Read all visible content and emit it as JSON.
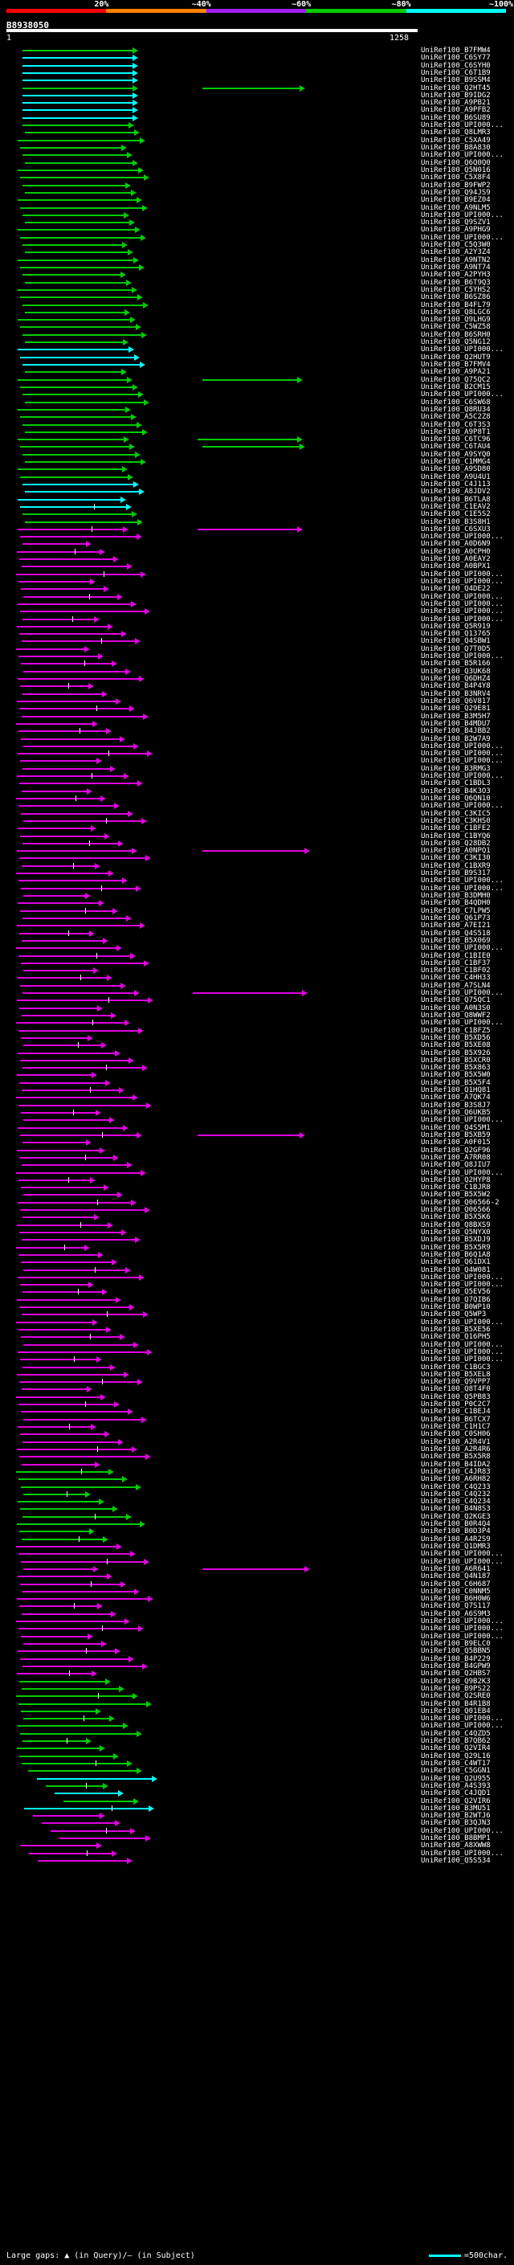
{
  "scale": {
    "ticks": [
      "20%",
      "~40%",
      "~60%",
      "~80%",
      "~100%"
    ],
    "colors": [
      "#ff0000",
      "#ff8000",
      "#a020f0",
      "#00cc00",
      "#00ffff"
    ]
  },
  "query": {
    "id": "B8938050",
    "start": "1",
    "end": "1258"
  },
  "colors": {
    "cyan": "#00ffff",
    "green": "#00cc00",
    "magenta": "#e000e0"
  },
  "hits": [
    "UniRef100_B7FMW4",
    "UniRef100_C6SY77",
    "UniRef100_C6SYH0",
    "UniRef100_C6T1B9",
    "UniRef100_B9SSM4",
    "UniRef100_Q2HT45",
    "UniRef100_B9IDG2",
    "UniRef100_A9PB21",
    "UniRef100_A9PFB2",
    "UniRef100_B6SU89",
    "UniRef100_UPI000...",
    "UniRef100_Q8LMR3",
    "UniRef100_C5XA49",
    "UniRef100_B8A830",
    "UniRef100_UPI000...",
    "UniRef100_Q6Q0Q0",
    "UniRef100_Q5N016",
    "UniRef100_C5X8F4",
    "UniRef100_B9FWP2",
    "UniRef100_Q94JS9",
    "UniRef100_B9EZ04",
    "UniRef100_A9NLM5",
    "UniRef100_UPI000...",
    "UniRef100_Q9SZV1",
    "UniRef100_A9PHG9",
    "UniRef100_UPI000...",
    "UniRef100_C5Q3W0",
    "UniRef100_A2Y3Z4",
    "UniRef100_A9NTN2",
    "UniRef100_A9NT74",
    "UniRef100_A2PYH3",
    "UniRef100_B6T9Q3",
    "UniRef100_C5YHS2",
    "UniRef100_B6SZ86",
    "UniRef100_B4FL79",
    "UniRef100_Q8LGC6",
    "UniRef100_Q9LHG9",
    "UniRef100_C5WZ58",
    "UniRef100_B6SRH0",
    "UniRef100_Q5NG12",
    "UniRef100_UPI000...",
    "UniRef100_Q2HUT9",
    "UniRef100_B7FMV4",
    "UniRef100_A9PA21",
    "UniRef100_Q75QC2",
    "UniRef100_B2CM15",
    "UniRef100_UPI000...",
    "UniRef100_C6SW68",
    "UniRef100_Q8RU34",
    "UniRef100_A5C2Z8",
    "UniRef100_C6T3S3",
    "UniRef100_A9P8T1",
    "UniRef100_C6TC96",
    "UniRef100_C6TAU4",
    "UniRef100_A9SYQ0",
    "UniRef100_C1MMG4",
    "UniRef100_A9SD80",
    "UniRef100_A9U4U1",
    "UniRef100_C4J113",
    "UniRef100_A8JDV2",
    "UniRef100_B6TLA8",
    "UniRef100_C1EAV2",
    "UniRef100_C1E5S2",
    "UniRef100_B3S8H1",
    "UniRef100_C6SXU3",
    "UniRef100_UPI000...",
    "UniRef100_A0D6N9",
    "UniRef100_A0CPH0",
    "UniRef100_A0EAY2",
    "UniRef100_A0BPX1",
    "UniRef100_UPI000...",
    "UniRef100_UPI000...",
    "UniRef100_Q4DE22",
    "UniRef100_UPI000...",
    "UniRef100_UPI000...",
    "UniRef100_UPI000...",
    "UniRef100_UPI000...",
    "UniRef100_Q5R919",
    "UniRef100_Q13765",
    "UniRef100_Q4SBW1",
    "UniRef100_Q7T0D5",
    "UniRef100_UPI000...",
    "UniRef100_B5R166",
    "UniRef100_Q3UK68",
    "UniRef100_Q6DHZ4",
    "UniRef100_B4P4Y8",
    "UniRef100_B3NRV4",
    "UniRef100_Q6V817",
    "UniRef100_Q29E81",
    "UniRef100_B3M5H7",
    "UniRef100_B4MDU7",
    "UniRef100_B4JBB2",
    "UniRef100_B2W7A9",
    "UniRef100_UPI000...",
    "UniRef100_UPI000...",
    "UniRef100_UPI000...",
    "UniRef100_B3RMG3",
    "UniRef100_UPI000...",
    "UniRef100_C1BDL3",
    "UniRef100_B4K3O3",
    "UniRef100_Q6QN10",
    "UniRef100_UPI000...",
    "UniRef100_C3KIC5",
    "UniRef100_C3KHS0",
    "UniRef100_C1BFE2",
    "UniRef100_C1BYQ6",
    "UniRef100_Q28DB2",
    "UniRef100_A0NPQ1",
    "UniRef100_C3KI30",
    "UniRef100_C1BXR9",
    "UniRef100_B9S317",
    "UniRef100_UPI000...",
    "UniRef100_UPI000...",
    "UniRef100_B3DMH0",
    "UniRef100_B4QDH0",
    "UniRef100_C7LPW5",
    "UniRef100_Q61P73",
    "UniRef100_A7EI21",
    "UniRef100_Q4S518",
    "UniRef100_B5X069",
    "UniRef100_UPI000...",
    "UniRef100_C1BIE0",
    "UniRef100_C1BF37",
    "UniRef100_C1BF02",
    "UniRef100_C4HH33",
    "UniRef100_A7SLN4",
    "UniRef100_UPI000...",
    "UniRef100_Q75QC1",
    "UniRef100_A0N3S0",
    "UniRef100_Q8WWF2",
    "UniRef100_UPI000...",
    "UniRef100_C1BFZ5",
    "UniRef100_B5XD56",
    "UniRef100_B5XE08",
    "UniRef100_B5X926",
    "UniRef100_B5XCR0",
    "UniRef100_B5X863",
    "UniRef100_B5X5W0",
    "UniRef100_B5X5F4",
    "UniRef100_Q1HQ81",
    "UniRef100_A7QK74",
    "UniRef100_B3S8J7",
    "UniRef100_Q6UKB5",
    "UniRef100_UPI000...",
    "UniRef100_Q4S5M1",
    "UniRef100_B5XB59",
    "UniRef100_A0F015",
    "UniRef100_Q2GF96",
    "UniRef100_A7RR08",
    "UniRef100_Q8JIU7",
    "UniRef100_UPI000...",
    "UniRef100_Q2HYP8",
    "UniRef100_C1BJR8",
    "UniRef100_B5X5W2",
    "UniRef100_Q06566-2",
    "UniRef100_Q06566",
    "UniRef100_B5X5K6",
    "UniRef100_Q8BXS9",
    "UniRef100_Q5NYX0",
    "UniRef100_B5XDJ9",
    "UniRef100_B5X5R9",
    "UniRef100_B6Q1A8",
    "UniRef100_Q61DX1",
    "UniRef100_Q4W081",
    "UniRef100_UPI000...",
    "UniRef100_UPI000...",
    "UniRef100_Q5EV56",
    "UniRef100_Q7QIB6",
    "UniRef100_B0WP10",
    "UniRef100_Q5WP3",
    "UniRef100_UPI000...",
    "UniRef100_B5XE56",
    "UniRef100_Q16PH5",
    "UniRef100_UPI000...",
    "UniRef100_UPI000...",
    "UniRef100_UPI000...",
    "UniRef100_C1BGC3",
    "UniRef100_B5XEL8",
    "UniRef100_Q9VPP7",
    "UniRef100_Q8T4F0",
    "UniRef100_Q5PB83",
    "UniRef100_P0C2C7",
    "UniRef100_C1BEJ4",
    "UniRef100_B6TCX7",
    "UniRef100_C1H1C7",
    "UniRef100_C0SH06",
    "UniRef100_A2R4V1",
    "UniRef100_A2R4R6",
    "UniRef100_B5X5R8",
    "UniRef100_B4IDA2",
    "UniRef100_C4JR83",
    "UniRef100_A6RH82",
    "UniRef100_C4Q233",
    "UniRef100_C4Q232",
    "UniRef100_C4Q234",
    "UniRef100_B4N8S3",
    "UniRef100_Q2KGE3",
    "UniRef100_B0R4Q4",
    "UniRef100_B0D3P4",
    "UniRef100_A4R2S9",
    "UniRef100_Q1DMR3",
    "UniRef100_UPI000...",
    "UniRef100_UPI000...",
    "UniRef100_A6R641",
    "UniRef100_Q4N187",
    "UniRef100_C6H687",
    "UniRef100_C0NNM5",
    "UniRef100_B6H0W6",
    "UniRef100_Q7S117",
    "UniRef100_A6S9M3",
    "UniRef100_UPI000...",
    "UniRef100_UPI000...",
    "UniRef100_UPI000...",
    "UniRef100_B9ELC0",
    "UniRef100_Q5BBN5",
    "UniRef100_B4P229",
    "UniRef100_B4GPW9",
    "UniRef100_Q2HBS7",
    "UniRef100_Q9B2K3",
    "UniRef100_B9PS22",
    "UniRef100_Q2SRE0",
    "UniRef100_B4R1B8",
    "UniRef100_Q01EB4",
    "UniRef100_UPI000...",
    "UniRef100_UPI000...",
    "UniRef100_C4QZD5",
    "UniRef100_B7QB62",
    "UniRef100_Q2VIR4",
    "UniRef100_Q29L16",
    "UniRef100_C4WT17",
    "UniRef100_C5GGN1",
    "UniRef100_Q2U955",
    "UniRef100_A4S393",
    "UniRef100_C4JQD1",
    "UniRef100_Q2VIR6",
    "UniRef100_B3MU51",
    "UniRef100_B2WTJ6",
    "UniRef100_B3QJN3",
    "UniRef100_UPI000...",
    "UniRef100_B8BMP1",
    "UniRef100_A8XWW8",
    "UniRef100_UPI000...",
    "UniRef100_Q5S534"
  ],
  "footer": {
    "legend": "Large gaps: ▲ (in Query)/— (in Subject)",
    "scale_label": "=500char."
  }
}
